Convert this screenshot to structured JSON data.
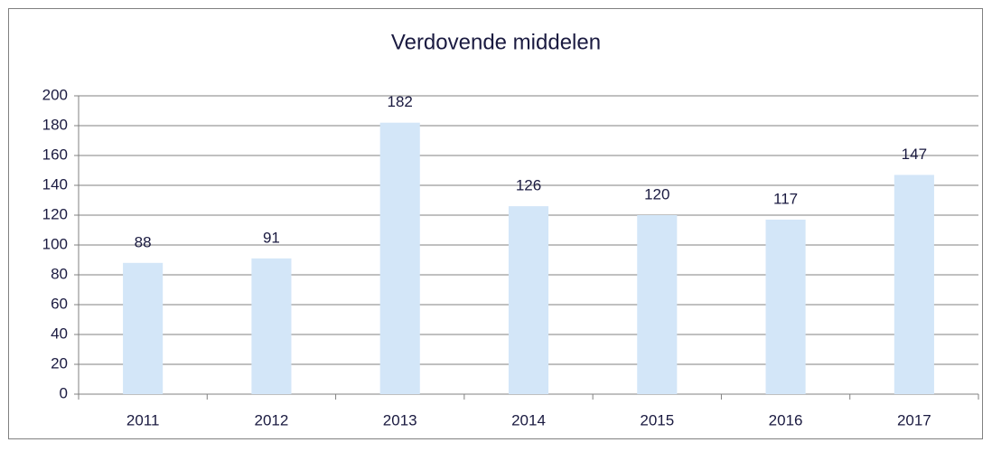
{
  "chart_data": {
    "type": "bar",
    "title": "Verdovende middelen",
    "categories": [
      "2011",
      "2012",
      "2013",
      "2014",
      "2015",
      "2016",
      "2017"
    ],
    "values": [
      88,
      91,
      182,
      126,
      120,
      117,
      147
    ],
    "color": "#d3e6f8",
    "ylim": [
      0,
      200
    ],
    "yticks": [
      0,
      20,
      40,
      60,
      80,
      100,
      120,
      140,
      160,
      180,
      200
    ],
    "grid": true
  }
}
